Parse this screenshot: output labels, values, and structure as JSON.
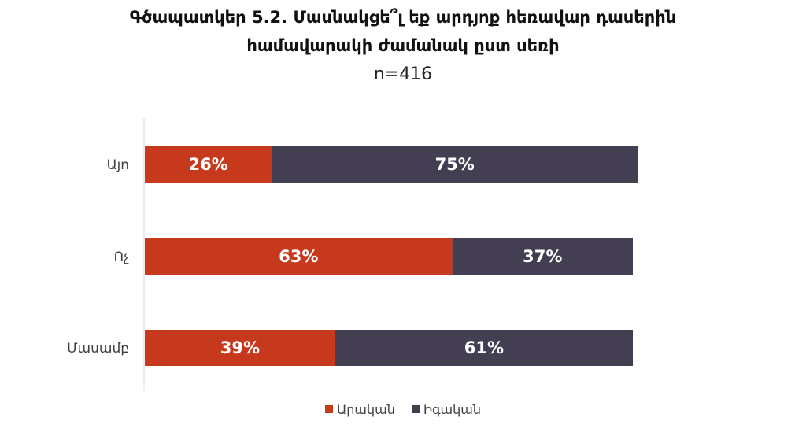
{
  "chart_data": {
    "type": "bar",
    "orientation": "horizontal",
    "stacked": true,
    "title_line1": "Գծապատկեր 5.2. Մասնակցե՞լ եք արդյոք հեռավար դասերին",
    "title_line2": "համավարակի ժամանակ ըստ սեռի",
    "subtitle": "n=416",
    "categories": [
      "Այո",
      "Ոչ",
      "Մասամբ"
    ],
    "series": [
      {
        "name": "Արական",
        "values": [
          26,
          63,
          39
        ],
        "labels": [
          "26%",
          "63%",
          "39%"
        ],
        "color": "#c7391c"
      },
      {
        "name": "Իգական",
        "values": [
          75,
          37,
          61
        ],
        "labels": [
          "75%",
          "37%",
          "61%"
        ],
        "color": "#433e52"
      }
    ],
    "xlim": [
      0,
      100
    ],
    "grid": false,
    "legend_position": "bottom"
  }
}
